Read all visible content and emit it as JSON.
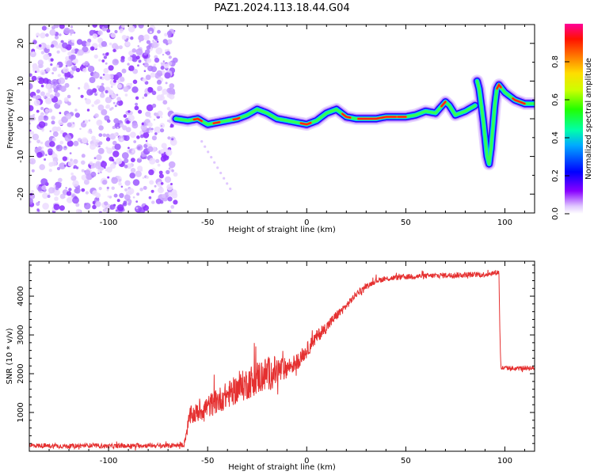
{
  "title": "PAZ1.2024.113.18.44.G04",
  "chart_data": [
    {
      "type": "heatmap",
      "xlabel": "Height of straight line (km)",
      "ylabel": "Frequency (Hz)",
      "xlim": [
        -140,
        115
      ],
      "ylim": [
        -25,
        25
      ],
      "x_ticks": [
        -100,
        -50,
        0,
        50,
        100
      ],
      "y_ticks": [
        -20,
        -10,
        0,
        10,
        20
      ],
      "colorbar": {
        "label": "Normalized spectral amplitude",
        "range": [
          0,
          1
        ],
        "ticks": [
          0.0,
          0.2,
          0.4,
          0.6,
          0.8
        ],
        "colors": [
          "#e9d5ff",
          "#7a00ff",
          "#0000ff",
          "#00ccff",
          "#00ff66",
          "#66ff00",
          "#ffff00",
          "#ff8800",
          "#ff0000",
          "#ff0088"
        ]
      },
      "ridge": {
        "x": [
          -66,
          -60,
          -55,
          -50,
          -45,
          -40,
          -35,
          -30,
          -25,
          -20,
          -15,
          -10,
          -5,
          0,
          5,
          10,
          15,
          20,
          25,
          30,
          35,
          40,
          45,
          50,
          55,
          60,
          65,
          70,
          72,
          75,
          80,
          85
        ],
        "y": [
          0,
          -0.5,
          0,
          -1.5,
          -1,
          -0.5,
          0,
          1,
          2.5,
          1.5,
          0,
          -0.5,
          -1,
          -1.5,
          -0.5,
          1.5,
          2.5,
          0.5,
          0,
          0,
          0,
          0.5,
          0.5,
          0.5,
          1,
          2,
          1.5,
          4.5,
          3.5,
          1,
          2,
          3.5
        ]
      },
      "burst": {
        "x": [
          86,
          87,
          88,
          89,
          90,
          91,
          92,
          93,
          94,
          95,
          96,
          97,
          100,
          105,
          110,
          115
        ],
        "y": [
          10,
          8,
          4,
          0,
          -5,
          -10,
          -12,
          -8,
          -2,
          4,
          8,
          9,
          7,
          5,
          4,
          4
        ]
      }
    },
    {
      "type": "line",
      "xlabel": "Height of straight line (km)",
      "ylabel": "SNR (10 * v/v)",
      "xlim": [
        -140,
        115
      ],
      "ylim": [
        0,
        4900
      ],
      "x_ticks": [
        -100,
        -50,
        0,
        50,
        100
      ],
      "y_ticks": [
        1000,
        2000,
        3000,
        4000
      ],
      "color": "#e53030",
      "x": [
        -140,
        -130,
        -120,
        -110,
        -100,
        -90,
        -80,
        -70,
        -62,
        -59,
        -55,
        -50,
        -45,
        -40,
        -35,
        -30,
        -25,
        -20,
        -15,
        -10,
        -5,
        0,
        5,
        10,
        15,
        20,
        25,
        30,
        35,
        40,
        50,
        60,
        70,
        80,
        90,
        97,
        97.5,
        98,
        100,
        105,
        110,
        115
      ],
      "values": [
        150,
        140,
        130,
        150,
        130,
        140,
        150,
        140,
        160,
        900,
        1000,
        1150,
        1300,
        1450,
        1600,
        1750,
        1900,
        2000,
        2050,
        2150,
        2300,
        2600,
        2950,
        3200,
        3500,
        3750,
        4050,
        4250,
        4400,
        4450,
        4500,
        4520,
        4540,
        4550,
        4560,
        4620,
        3000,
        2150,
        2150,
        2130,
        2150,
        2140
      ],
      "noise": [
        60,
        60,
        60,
        60,
        60,
        60,
        60,
        60,
        60,
        250,
        260,
        300,
        330,
        350,
        380,
        420,
        450,
        450,
        420,
        250,
        220,
        200,
        170,
        150,
        130,
        100,
        80,
        70,
        70,
        70,
        70,
        70,
        70,
        70,
        70,
        70,
        0,
        60,
        60,
        60,
        60,
        60
      ]
    }
  ]
}
